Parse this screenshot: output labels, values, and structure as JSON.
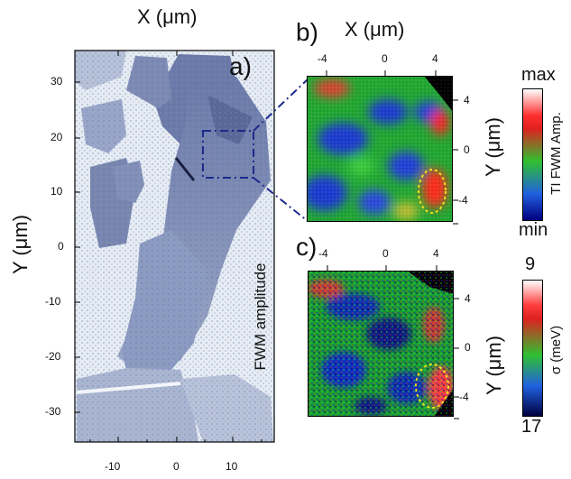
{
  "panel_a": {
    "label": "a)",
    "x_axis_title": "X (μm)",
    "y_axis_title": "Y (μm)",
    "x_ticks": [
      "-10",
      "0",
      "10"
    ],
    "y_ticks": [
      "30",
      "20",
      "10",
      "0",
      "-10",
      "-20",
      "-30"
    ],
    "inner_label": "FWM amplitude"
  },
  "panel_b": {
    "label": "b)",
    "x_axis_title": "X (μm)",
    "y_axis_title": "Y (μm)",
    "x_ticks": [
      "-4",
      "0",
      "4"
    ],
    "y_ticks": [
      "4",
      "0",
      "-4"
    ],
    "colorbar": {
      "title": "TI FWM Amp.",
      "max_label": "max",
      "min_label": "min"
    }
  },
  "panel_c": {
    "label": "c)",
    "y_axis_title": "Y (μm)",
    "x_ticks": [
      "-4",
      "0",
      "4"
    ],
    "y_ticks": [
      "4",
      "0",
      "-4"
    ],
    "colorbar": {
      "title": "σ (meV)",
      "max_label": "9",
      "min_label": "17"
    }
  },
  "colors": {
    "zoom_box": "#1a2a8a",
    "highlight": "#f2e020"
  }
}
